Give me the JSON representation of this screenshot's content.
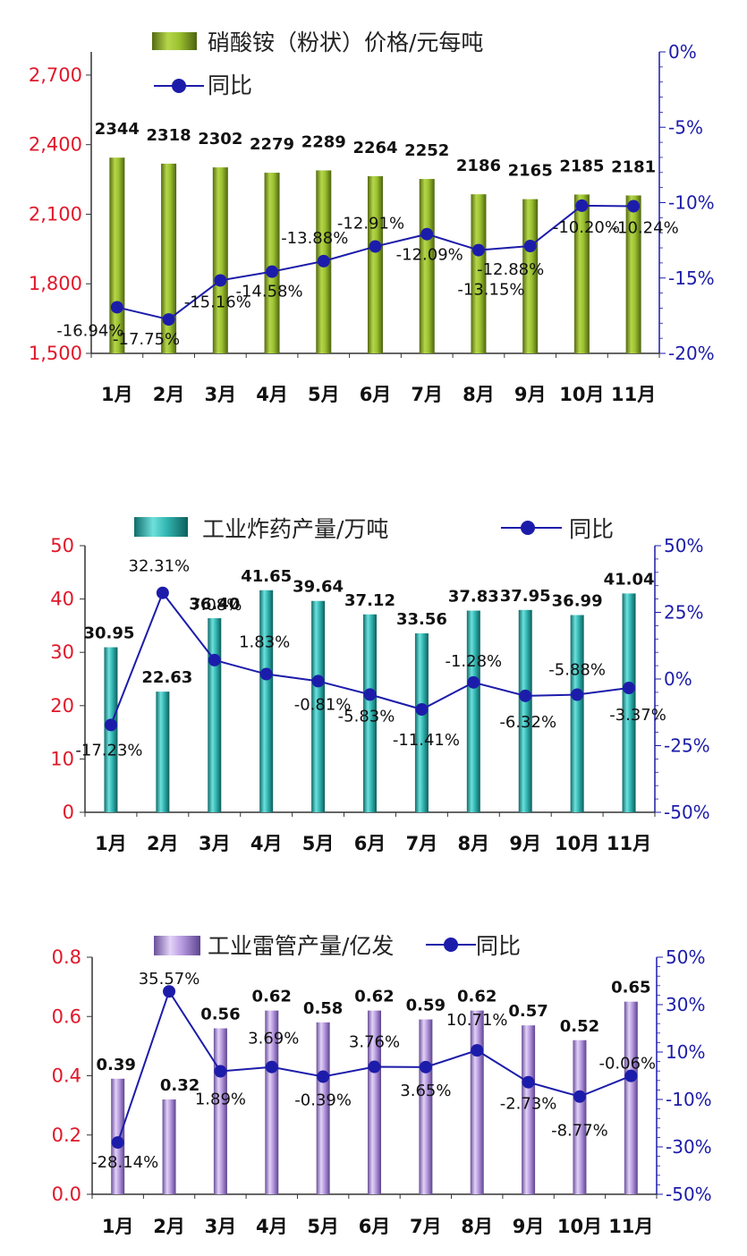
{
  "chart_data": [
    {
      "type": "bar",
      "categories": [
        "1月",
        "2月",
        "3月",
        "4月",
        "5月",
        "6月",
        "7月",
        "8月",
        "9月",
        "10月",
        "11月"
      ],
      "series": [
        {
          "name": "硝酸铵（粉状）价格/元每吨",
          "type": "bar",
          "axis": "left",
          "values": [
            2344,
            2318,
            2302,
            2279,
            2289,
            2264,
            2252,
            2186,
            2165,
            2185,
            2181
          ],
          "labels": [
            "2344",
            "2318",
            "2302",
            "2279",
            "2289",
            "2264",
            "2252",
            "2186",
            "2165",
            "2185",
            "2181"
          ],
          "color": "#8fb321"
        },
        {
          "name": "同比",
          "type": "line",
          "axis": "right",
          "values": [
            -16.94,
            -17.75,
            -15.16,
            -14.58,
            -13.88,
            -12.91,
            -12.09,
            -13.15,
            -12.88,
            -10.2,
            -10.24
          ],
          "labels": [
            "-16.94%",
            "-17.75%",
            "-15.16%",
            "-14.58%",
            "-13.88%",
            "-12.91%",
            "-12.09%",
            "-13.15%",
            "-12.88%",
            "-10.20%",
            "-10.24%"
          ],
          "color": "#1c1caa"
        }
      ],
      "ylim": [
        1500,
        2800
      ],
      "yticks": [
        "1,500",
        "1,800",
        "2,100",
        "2,400",
        "2,700"
      ],
      "y2lim": [
        -20,
        0
      ],
      "y2ticks": [
        "-20%",
        "-15%",
        "-10%",
        "-5%",
        "0%"
      ],
      "legend": "top-left"
    },
    {
      "type": "bar",
      "categories": [
        "1月",
        "2月",
        "3月",
        "4月",
        "5月",
        "6月",
        "7月",
        "8月",
        "9月",
        "10月",
        "11月"
      ],
      "series": [
        {
          "name": "工业炸药产量/万吨",
          "type": "bar",
          "axis": "left",
          "values": [
            30.95,
            22.63,
            36.4,
            41.65,
            39.64,
            37.12,
            33.56,
            37.83,
            37.95,
            36.99,
            41.04
          ],
          "labels": [
            "30.95",
            "22.63",
            "36.40",
            "41.65",
            "39.64",
            "37.12",
            "33.56",
            "37.83",
            "37.95",
            "36.99",
            "41.04"
          ],
          "color": "#23a8a6"
        },
        {
          "name": "同比",
          "type": "line",
          "axis": "right",
          "values": [
            -17.23,
            32.31,
            7.08,
            1.83,
            -0.81,
            -5.83,
            -11.41,
            -1.28,
            -6.32,
            -5.88,
            -3.37
          ],
          "labels": [
            "-17.23%",
            "32.31%",
            "7.08%",
            "1.83%",
            "-0.81%",
            "-5.83%",
            "-11.41%",
            "-1.28%",
            "-6.32%",
            "-5.88%",
            "-3.37%"
          ],
          "color": "#1c1caa"
        }
      ],
      "ylim": [
        0,
        50
      ],
      "yticks": [
        "0",
        "10",
        "20",
        "30",
        "40",
        "50"
      ],
      "y2lim": [
        -50,
        50
      ],
      "y2ticks": [
        "-50%",
        "-25%",
        "0%",
        "25%",
        "50%"
      ],
      "legend": "top"
    },
    {
      "type": "bar",
      "categories": [
        "1月",
        "2月",
        "3月",
        "4月",
        "5月",
        "6月",
        "7月",
        "8月",
        "9月",
        "10月",
        "11月"
      ],
      "series": [
        {
          "name": "工业雷管产量/亿发",
          "type": "bar",
          "axis": "left",
          "values": [
            0.39,
            0.32,
            0.56,
            0.62,
            0.58,
            0.62,
            0.59,
            0.62,
            0.57,
            0.52,
            0.65
          ],
          "labels": [
            "0.39",
            "0.32",
            "0.56",
            "0.62",
            "0.58",
            "0.62",
            "0.59",
            "0.62",
            "0.57",
            "0.52",
            "0.65"
          ],
          "color": "#a98ad6"
        },
        {
          "name": "同比",
          "type": "line",
          "axis": "right",
          "values": [
            -28.14,
            35.57,
            1.89,
            3.69,
            -0.39,
            3.76,
            3.65,
            10.71,
            -2.73,
            -8.77,
            -0.06
          ],
          "labels": [
            "-28.14%",
            "35.57%",
            "1.89%",
            "3.69%",
            "-0.39%",
            "3.76%",
            "3.65%",
            "10.71%",
            "-2.73%",
            "-8.77%",
            "-0.06%"
          ],
          "color": "#1c1caa"
        }
      ],
      "ylim": [
        0,
        0.8
      ],
      "yticks": [
        "0.0",
        "0.2",
        "0.4",
        "0.6",
        "0.8"
      ],
      "y2lim": [
        -50,
        50
      ],
      "y2ticks": [
        "-50%",
        "-30%",
        "-10%",
        "10%",
        "30%",
        "50%"
      ],
      "legend": "top"
    }
  ]
}
